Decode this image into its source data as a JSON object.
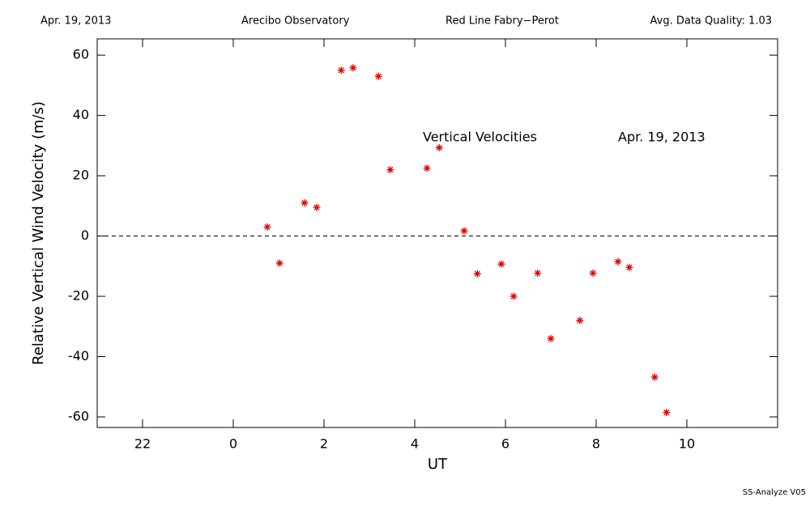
{
  "chart_data": {
    "type": "scatter",
    "header": [
      "Apr. 19, 2013",
      "Arecibo Observatory",
      "Red Line Fabry−Perot",
      "Avg. Data Quality: 1.03"
    ],
    "annotations": [
      "Vertical Velocities",
      "Apr. 19, 2013"
    ],
    "footer": "SS-Analyze V05",
    "x_label": "UT",
    "y_label": "Relative Vertical Wind Velocity (m/s)",
    "color": "#e00000",
    "reference_line": 0,
    "x": [
      0.75,
      1.02,
      1.57,
      1.84,
      2.38,
      2.64,
      3.2,
      3.46,
      4.27,
      4.54,
      5.09,
      5.38,
      5.91,
      6.18,
      6.71,
      7.0,
      7.64,
      7.93,
      8.48,
      8.73,
      9.29,
      9.55
    ],
    "values": [
      3,
      -9,
      11,
      9.5,
      55,
      55.8,
      53,
      22,
      22.5,
      29.3,
      1.7,
      -12.5,
      -9.3,
      -20,
      -12.3,
      -34,
      -28,
      -12.3,
      -8.5,
      -10.4,
      -46.8,
      -58.5
    ],
    "xlim": [
      -3,
      12
    ],
    "xticks": [
      {
        "value": -2,
        "label": "22"
      },
      0,
      2,
      4,
      6,
      8,
      10
    ],
    "ylim": [
      -63.5,
      65.4
    ],
    "yticks": [
      -60,
      -40,
      -20,
      0,
      20,
      40,
      60
    ]
  }
}
